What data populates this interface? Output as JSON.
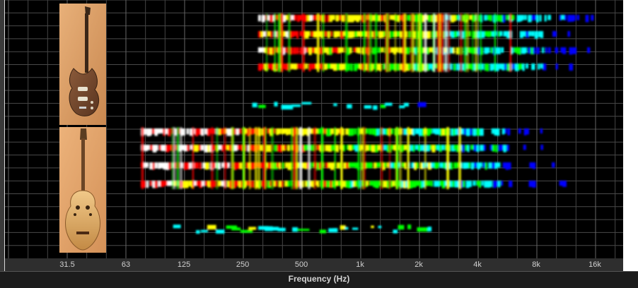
{
  "chart_data": {
    "type": "heatmap",
    "title": "",
    "xlabel": "Frequency (Hz)",
    "ylabel": "",
    "x_scale": "log2",
    "xlim": [
      22,
      22000
    ],
    "ticks": [
      {
        "value": 31.5,
        "label": "31.5"
      },
      {
        "value": 63,
        "label": "63"
      },
      {
        "value": 125,
        "label": "125"
      },
      {
        "value": 250,
        "label": "250"
      },
      {
        "value": 500,
        "label": "500"
      },
      {
        "value": 1000,
        "label": "1k"
      },
      {
        "value": 2000,
        "label": "2k"
      },
      {
        "value": 4000,
        "label": "4k"
      },
      {
        "value": 8000,
        "label": "8k"
      },
      {
        "value": 16000,
        "label": "16k"
      }
    ],
    "grid": true,
    "colormap": [
      "#0000ff",
      "#00ffff",
      "#00ff00",
      "#ffff00",
      "#ff0000",
      "#ffffff"
    ],
    "panels": [
      {
        "instrument_image": "electric-guitar",
        "note_rows": [
          {
            "f_start": 300,
            "f_end": 17000,
            "intensity": 0.85
          },
          {
            "f_start": 300,
            "f_end": 16500,
            "intensity": 0.8
          },
          {
            "f_start": 300,
            "f_end": 16000,
            "intensity": 0.8
          },
          {
            "f_start": 300,
            "f_end": 16000,
            "intensity": 0.75
          }
        ],
        "noise_band": {
          "f_start": 280,
          "f_end": 2200,
          "intensity": 0.3
        }
      },
      {
        "instrument_image": "acoustic-guitar",
        "note_rows": [
          {
            "f_start": 75,
            "f_end": 11000,
            "intensity": 0.95
          },
          {
            "f_start": 75,
            "f_end": 11000,
            "intensity": 0.9
          },
          {
            "f_start": 75,
            "f_end": 11000,
            "intensity": 0.9
          },
          {
            "f_start": 75,
            "f_end": 11000,
            "intensity": 0.85
          }
        ],
        "noise_band": {
          "f_start": 110,
          "f_end": 2500,
          "intensity": 0.45
        }
      }
    ]
  },
  "icons": {
    "electric_guitar": "electric-guitar-photo",
    "acoustic_guitar": "acoustic-guitar-photo"
  }
}
